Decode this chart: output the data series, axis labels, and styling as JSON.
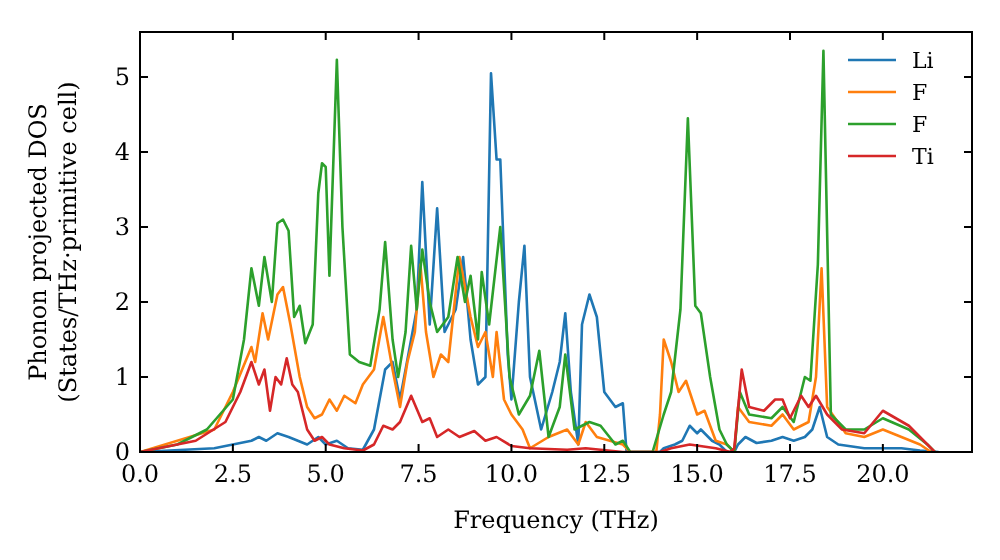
{
  "chart_data": {
    "type": "line",
    "xlabel": "Frequency (THz)",
    "ylabel": "Phonon projected DOS\n(States/THz·primitive cell)",
    "xlim": [
      0,
      22.4
    ],
    "ylim": [
      0,
      5.6
    ],
    "xticks": [
      {
        "value": 0,
        "label": "0.0"
      },
      {
        "value": 2.5,
        "label": "2.5"
      },
      {
        "value": 5,
        "label": "5.0"
      },
      {
        "value": 7.5,
        "label": "7.5"
      },
      {
        "value": 10,
        "label": "10.0"
      },
      {
        "value": 12.5,
        "label": "12.5"
      },
      {
        "value": 15,
        "label": "15.0"
      },
      {
        "value": 17.5,
        "label": "17.5"
      },
      {
        "value": 20,
        "label": "20.0"
      }
    ],
    "yticks": [
      0,
      1,
      2,
      3,
      4,
      5
    ],
    "grid": false,
    "legend": "top right",
    "marker": "none",
    "line_style": "solid",
    "series": [
      {
        "name": "Li",
        "color": "#1f77b4",
        "x": [
          0,
          2,
          3,
          3.2,
          3.4,
          3.7,
          4,
          4.5,
          4.8,
          5,
          5.3,
          5.6,
          6,
          6.3,
          6.6,
          6.8,
          7,
          7.3,
          7.45,
          7.6,
          7.8,
          8,
          8.2,
          8.5,
          8.7,
          8.9,
          9.1,
          9.3,
          9.45,
          9.6,
          9.7,
          9.9,
          10,
          10.2,
          10.35,
          10.5,
          10.8,
          11.1,
          11.3,
          11.45,
          11.6,
          11.8,
          11.9,
          12.1,
          12.3,
          12.5,
          12.8,
          13,
          13.1,
          14,
          14.1,
          14.4,
          14.6,
          14.8,
          15,
          15.1,
          15.4,
          15.6,
          15.8,
          16,
          16.1,
          16.3,
          16.6,
          17,
          17.3,
          17.6,
          17.9,
          18.1,
          18.3,
          18.5,
          18.8,
          19.5,
          20.5,
          21,
          21.5
        ],
        "values": [
          0,
          0.05,
          0.15,
          0.2,
          0.15,
          0.25,
          0.2,
          0.1,
          0.2,
          0.1,
          0.15,
          0.05,
          0.03,
          0.3,
          1.1,
          1.2,
          0.7,
          1.5,
          1.9,
          3.6,
          1.7,
          3.25,
          1.6,
          1.9,
          2.6,
          1.5,
          0.9,
          1,
          5.05,
          3.9,
          3.9,
          1.3,
          0.7,
          2,
          2.75,
          1,
          0.3,
          0.8,
          1.2,
          1.85,
          0.8,
          0.1,
          1.7,
          2.1,
          1.8,
          0.8,
          0.6,
          0.65,
          0,
          0,
          0.05,
          0.1,
          0.15,
          0.35,
          0.25,
          0.3,
          0.15,
          0.1,
          0,
          0,
          0.1,
          0.2,
          0.12,
          0.15,
          0.2,
          0.15,
          0.2,
          0.3,
          0.6,
          0.2,
          0.1,
          0.05,
          0.05,
          0.02,
          0
        ]
      },
      {
        "name": "F",
        "color": "#ff7f0e",
        "x": [
          0,
          2,
          2.5,
          3,
          3.1,
          3.3,
          3.45,
          3.7,
          3.85,
          4.05,
          4.3,
          4.5,
          4.7,
          4.9,
          5.1,
          5.3,
          5.5,
          5.8,
          6,
          6.3,
          6.55,
          6.8,
          7,
          7.2,
          7.4,
          7.55,
          7.7,
          7.9,
          8.1,
          8.3,
          8.6,
          8.9,
          9.1,
          9.3,
          9.5,
          9.6,
          9.8,
          10,
          10.3,
          10.5,
          11,
          11.5,
          11.8,
          12,
          12.3,
          13,
          13.2,
          13.9,
          14,
          14.1,
          14.3,
          14.5,
          14.7,
          15,
          15.2,
          15.5,
          15.8,
          16,
          16.1,
          16.4,
          17,
          17.3,
          17.6,
          18,
          18.2,
          18.35,
          18.5,
          19,
          19.5,
          20,
          20.5,
          21,
          21.3
        ],
        "values": [
          0,
          0.3,
          0.8,
          1.4,
          1.2,
          1.85,
          1.5,
          2.1,
          2.2,
          1.7,
          1,
          0.6,
          0.45,
          0.5,
          0.7,
          0.55,
          0.75,
          0.65,
          0.9,
          1.1,
          1.8,
          1.1,
          0.6,
          1.2,
          1.6,
          2.5,
          1.6,
          1,
          1.3,
          1.2,
          2.6,
          1.8,
          1.4,
          1.6,
          1,
          1.6,
          0.7,
          0.5,
          0.3,
          0.05,
          0.2,
          0.3,
          0.1,
          0.4,
          0.2,
          0.1,
          0,
          0,
          0.5,
          1.5,
          1.2,
          0.8,
          0.95,
          0.5,
          0.55,
          0.15,
          0.1,
          0,
          0.6,
          0.4,
          0.35,
          0.5,
          0.3,
          0.4,
          1,
          2.45,
          0.6,
          0.25,
          0.2,
          0.3,
          0.2,
          0.1,
          0
        ]
      },
      {
        "name": "F",
        "color": "#2ca02c",
        "x": [
          0,
          1,
          1.8,
          2.5,
          2.8,
          3,
          3.2,
          3.35,
          3.55,
          3.7,
          3.85,
          4,
          4.15,
          4.3,
          4.45,
          4.65,
          4.8,
          4.9,
          5,
          5.1,
          5.3,
          5.45,
          5.65,
          5.9,
          6.2,
          6.45,
          6.6,
          6.8,
          6.95,
          7.15,
          7.3,
          7.45,
          7.6,
          7.8,
          8,
          8.3,
          8.55,
          8.75,
          8.9,
          9.1,
          9.2,
          9.4,
          9.7,
          9.95,
          10.2,
          10.5,
          10.75,
          11,
          11.3,
          11.45,
          11.7,
          12.1,
          12.4,
          12.8,
          13,
          13.2,
          13.8,
          14.1,
          14.3,
          14.55,
          14.75,
          14.95,
          15.1,
          15.35,
          15.6,
          15.8,
          16,
          16.15,
          16.4,
          17,
          17.3,
          17.6,
          17.9,
          18.05,
          18.25,
          18.4,
          18.6,
          19,
          19.5,
          20,
          20.7,
          21.2,
          21.4
        ],
        "values": [
          0,
          0.1,
          0.3,
          0.7,
          1.5,
          2.45,
          1.95,
          2.6,
          2,
          3.05,
          3.1,
          2.95,
          1.8,
          1.95,
          1.45,
          1.7,
          3.45,
          3.85,
          3.8,
          2.35,
          5.23,
          3,
          1.3,
          1.2,
          1.15,
          1.9,
          2.8,
          1.5,
          1,
          1.6,
          2.75,
          1.9,
          2.7,
          2,
          1.6,
          1.8,
          2.6,
          2,
          2.35,
          1.5,
          2.4,
          1.7,
          3,
          1,
          0.5,
          0.75,
          1.35,
          0.2,
          0.6,
          1.3,
          0.3,
          0.4,
          0.35,
          0.1,
          0.15,
          0,
          0,
          0.5,
          0.8,
          1.9,
          4.45,
          1.95,
          1.85,
          1,
          0.3,
          0.1,
          0,
          0.8,
          0.5,
          0.45,
          0.6,
          0.4,
          1,
          0.95,
          2.5,
          5.35,
          0.5,
          0.3,
          0.3,
          0.45,
          0.3,
          0.1,
          0
        ]
      },
      {
        "name": "Ti",
        "color": "#d62728",
        "x": [
          0,
          1.5,
          2.3,
          2.7,
          3,
          3.2,
          3.35,
          3.5,
          3.65,
          3.8,
          3.95,
          4.1,
          4.25,
          4.5,
          4.7,
          4.9,
          5.1,
          5.5,
          6,
          6.3,
          6.55,
          6.8,
          7,
          7.3,
          7.6,
          7.8,
          8,
          8.3,
          8.6,
          9,
          9.3,
          9.6,
          10,
          10.5,
          11.5,
          12,
          13,
          14,
          14.3,
          14.8,
          15.5,
          15.9,
          16,
          16.2,
          16.4,
          16.8,
          17.1,
          17.3,
          17.5,
          17.8,
          18,
          18.2,
          18.5,
          18.9,
          19.5,
          20,
          20.7,
          21.2,
          21.4
        ],
        "values": [
          0,
          0.15,
          0.4,
          0.8,
          1.2,
          0.9,
          1.1,
          0.55,
          1,
          0.9,
          1.25,
          0.9,
          0.8,
          0.3,
          0.15,
          0.2,
          0.1,
          0.05,
          0.02,
          0.1,
          0.35,
          0.3,
          0.4,
          0.75,
          0.4,
          0.45,
          0.2,
          0.3,
          0.2,
          0.28,
          0.15,
          0.2,
          0.08,
          0.05,
          0.03,
          0.05,
          0,
          0,
          0.05,
          0.1,
          0.05,
          0,
          0.05,
          1.1,
          0.6,
          0.55,
          0.7,
          0.7,
          0.45,
          0.75,
          0.6,
          0.75,
          0.5,
          0.3,
          0.25,
          0.55,
          0.35,
          0.1,
          0
        ]
      }
    ]
  }
}
